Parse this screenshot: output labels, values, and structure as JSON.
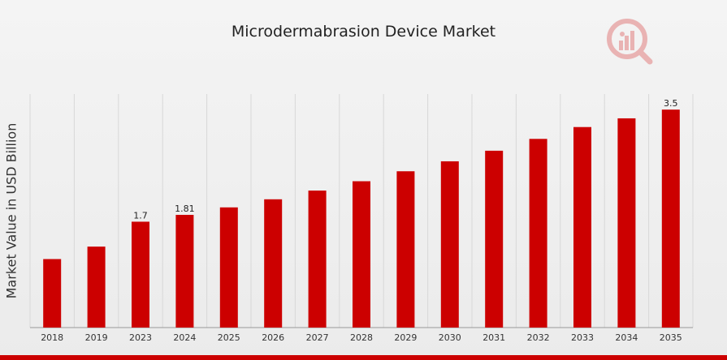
{
  "chart_data": {
    "type": "bar",
    "title": "Microdermabrasion Device Market",
    "xlabel": "",
    "ylabel": "Market Value in USD Billion",
    "categories": [
      "2018",
      "2019",
      "2023",
      "2024",
      "2025",
      "2026",
      "2027",
      "2028",
      "2029",
      "2030",
      "2031",
      "2032",
      "2033",
      "2034",
      "2035"
    ],
    "values": [
      1.1,
      1.3,
      1.7,
      1.81,
      1.93,
      2.06,
      2.2,
      2.35,
      2.51,
      2.67,
      2.84,
      3.03,
      3.22,
      3.36,
      3.5
    ],
    "data_labels": {
      "2023": "1.7",
      "2024": "1.81",
      "2035": "3.5"
    },
    "ylim": [
      0,
      3.75
    ],
    "grid": "vertical",
    "bar_color": "#cc0000",
    "logo_color": "#d94b4b"
  }
}
